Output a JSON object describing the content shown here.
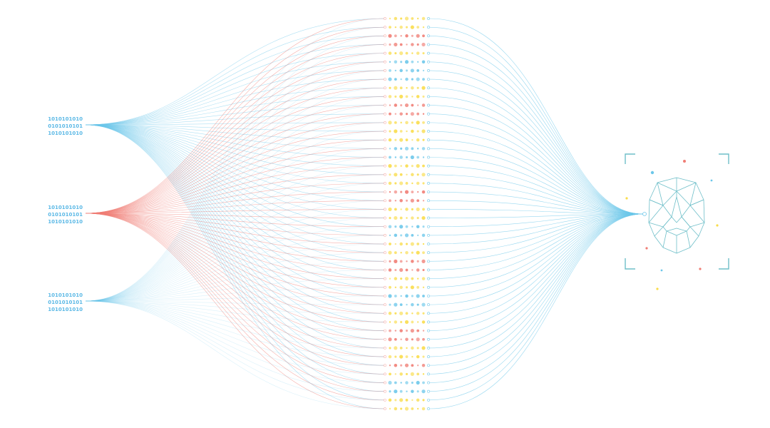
{
  "colors": {
    "blue": "#6cc7ea",
    "red": "#f07d74",
    "yellow": "#f9dc4a",
    "face": "#6fbfc9",
    "binary": "#5cb9e6",
    "background": "#ffffff"
  },
  "input_nodes": [
    {
      "lines": [
        "1010101010",
        "0101010101",
        "1010101010"
      ],
      "color_key": "blue",
      "opacity": 0.55
    },
    {
      "lines": [
        "1010101010",
        "0101010101",
        "1010101010"
      ],
      "color_key": "red",
      "opacity": 0.6
    },
    {
      "lines": [
        "1010101010",
        "0101010101",
        "1010101010"
      ],
      "color_key": "blue",
      "opacity": 0.25
    }
  ],
  "hidden_layer": {
    "rows": 46,
    "dots_per_row": 7,
    "row_colors": [
      "yellow",
      "yellow",
      "red",
      "red",
      "yellow",
      "blue",
      "blue",
      "blue",
      "yellow",
      "yellow",
      "red",
      "red",
      "yellow",
      "yellow",
      "yellow",
      "blue",
      "blue",
      "yellow",
      "yellow",
      "yellow",
      "red",
      "red",
      "yellow",
      "yellow",
      "blue",
      "blue",
      "yellow",
      "yellow",
      "red",
      "red",
      "yellow",
      "yellow",
      "blue",
      "blue",
      "yellow",
      "yellow",
      "red",
      "red",
      "yellow",
      "yellow",
      "red",
      "yellow",
      "blue",
      "blue",
      "yellow",
      "yellow"
    ]
  },
  "output": {
    "face_icon": "polygonal-face-icon",
    "frame_icon": "scan-frame-icon"
  }
}
